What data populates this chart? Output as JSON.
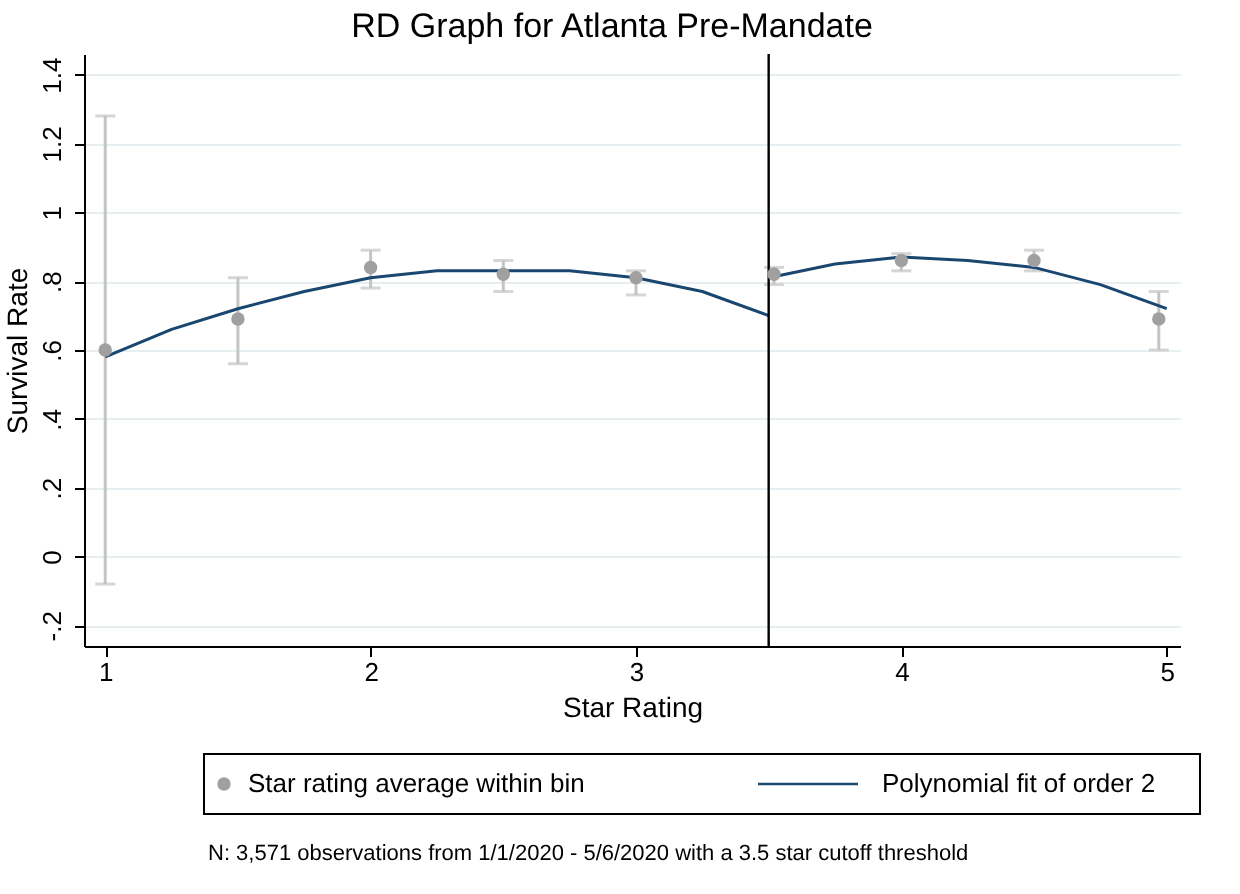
{
  "chart_data": {
    "type": "scatter",
    "title": "RD Graph for Atlanta Pre-Mandate",
    "xlabel": "Star Rating",
    "ylabel": "Survival Rate",
    "xlim": [
      0.92,
      5.05
    ],
    "xticks": [
      1,
      2,
      3,
      4,
      5
    ],
    "ylim": [
      -0.26,
      1.46
    ],
    "yticks": [
      {
        "value": -0.2,
        "label": "-.2"
      },
      0,
      {
        "value": 0.2,
        "label": ".2"
      },
      {
        "value": 0.4,
        "label": ".4"
      },
      {
        "value": 0.6,
        "label": ".6"
      },
      {
        "value": 0.8,
        "label": ".8"
      },
      1,
      {
        "value": 1.2,
        "label": "1.2"
      },
      {
        "value": 1.4,
        "label": "1.4"
      }
    ],
    "grid": "y",
    "legend": "bottom",
    "marker": "circle",
    "series": [
      {
        "name": "Star rating average within bin",
        "type": "scatter",
        "color": "#a0a0a0",
        "x": [
          1,
          1.5,
          2,
          2.5,
          3,
          3.52,
          4,
          4.5,
          4.97
        ],
        "values": [
          0.6,
          0.69,
          0.84,
          0.82,
          0.81,
          0.82,
          0.86,
          0.86,
          0.69
        ],
        "errors": [
          [
            -0.08,
            1.28
          ],
          [
            0.56,
            0.81
          ],
          [
            0.78,
            0.89
          ],
          [
            0.77,
            0.86
          ],
          [
            0.76,
            0.83
          ],
          [
            0.79,
            0.84
          ],
          [
            0.83,
            0.88
          ],
          [
            0.83,
            0.89
          ],
          [
            0.6,
            0.77
          ]
        ]
      },
      {
        "name": "Polynomial fit of order 2",
        "type": "line",
        "color": "#1a476f",
        "line_style": "solid",
        "marker": "none",
        "x": [
          1,
          1.25,
          1.5,
          1.75,
          2,
          2.25,
          2.5,
          2.75,
          3,
          3.25,
          3.5
        ],
        "values": [
          0.58,
          0.66,
          0.72,
          0.77,
          0.81,
          0.83,
          0.83,
          0.83,
          0.81,
          0.77,
          0.7
        ]
      },
      {
        "type": "line",
        "color": "#1a476f",
        "line_style": "solid",
        "marker": "none",
        "x": [
          3.5,
          3.75,
          4,
          4.25,
          4.5,
          4.75,
          5
        ],
        "values": [
          0.81,
          0.85,
          0.87,
          0.86,
          0.84,
          0.79,
          0.72
        ]
      }
    ],
    "ref_lines": [
      {
        "axis": "x",
        "value": 3.5,
        "color": "#000000",
        "line_style": "solid"
      }
    ],
    "annotations": [
      "N: 3,571 observations from 1/1/2020 - 5/6/2020 with a 3.5 star cutoff threshold"
    ]
  }
}
